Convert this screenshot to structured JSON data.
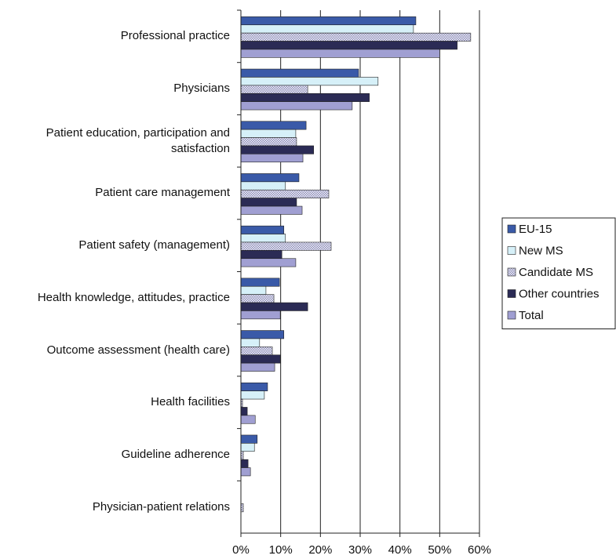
{
  "chart_data": {
    "type": "hbar",
    "categories": [
      "Professional practice",
      "Physicians",
      "Patient education, participation and satisfaction",
      "Patient care management",
      "Patient safety (management)",
      "Health knowledge, attitudes, practice",
      "Outcome assessment (health care)",
      "Health facilities",
      "Guideline adherence",
      "Physician-patient relations"
    ],
    "series": [
      {
        "name": "EU-15",
        "color": "#3a5aa8",
        "values": [
          44,
          29.6,
          16.4,
          14.6,
          10.8,
          9.7,
          10.8,
          6.7,
          4.1,
          0
        ]
      },
      {
        "name": "New MS",
        "color": "#d6f0f8",
        "values": [
          43.4,
          34.5,
          13.8,
          11.2,
          11.2,
          6.3,
          4.7,
          5.9,
          3.4,
          0
        ]
      },
      {
        "name": "Candidate MS",
        "color": "#8c8cb8",
        "pattern": "dots",
        "values": [
          57.8,
          16.8,
          14,
          22.1,
          22.7,
          8.3,
          7.9,
          0.4,
          0.6,
          0.6
        ]
      },
      {
        "name": "Other countries",
        "color": "#2b2b55",
        "values": [
          54.4,
          32.3,
          18.3,
          14,
          10.3,
          16.8,
          9.9,
          1.6,
          1.8,
          0
        ]
      },
      {
        "name": "Total",
        "color": "#a09fd2",
        "values": [
          50,
          28,
          15.6,
          15.4,
          13.8,
          9.9,
          8.5,
          3.6,
          2.4,
          0
        ]
      }
    ],
    "xlim": [
      0,
      60
    ],
    "xticks": [
      {
        "value": 0,
        "label": "0%"
      },
      {
        "value": 10,
        "label": "10%"
      },
      {
        "value": 20,
        "label": "20%"
      },
      {
        "value": 30,
        "label": "30%"
      },
      {
        "value": 40,
        "label": "40%"
      },
      {
        "value": 50,
        "label": "50%"
      },
      {
        "value": 60,
        "label": "60%"
      }
    ],
    "grid": true,
    "legend": "right"
  }
}
